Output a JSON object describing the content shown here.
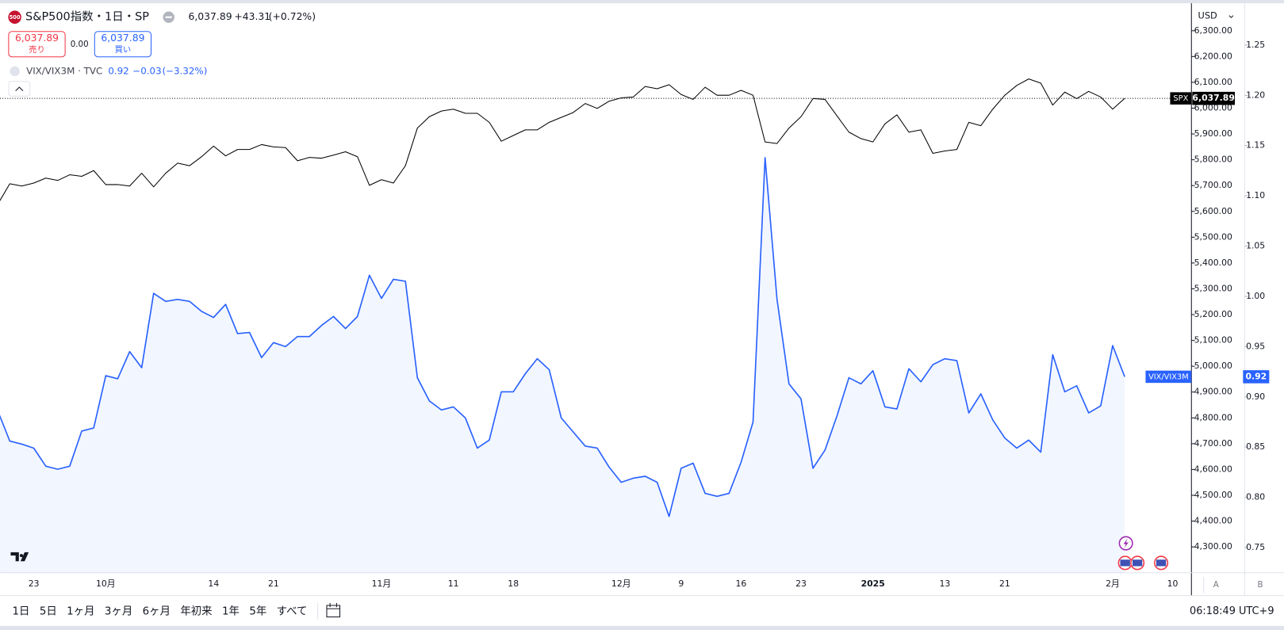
{
  "header": {
    "icon": "500",
    "symbol": "S&P500指数・1日・SP",
    "price": "6,037.89",
    "change": "+43.31",
    "change_pct": "(+0.72%)",
    "sell_price": "6,037.89",
    "sell": "売り",
    "spread": "0.00",
    "buy_price": "6,037.89",
    "buy": "買い"
  },
  "legend_row": {
    "label": "VIX/VIX3M · TVC",
    "value": "0.92",
    "change": "−0.03",
    "change_pct": "(−3.32%)"
  },
  "toolbar": {
    "ranges": [
      "1日",
      "5日",
      "1ヶ月",
      "3ヶ月",
      "6ヶ月",
      "年初来",
      "1年",
      "5年",
      "すべて"
    ],
    "time": "06:18:49 UTC+9",
    "currency": "USD",
    "scale_buttons": [
      "A",
      "B"
    ]
  },
  "chart_data": {
    "type": "line",
    "grid": false,
    "categories": [
      null,
      null,
      null,
      "23",
      null,
      null,
      null,
      null,
      null,
      "10月",
      null,
      null,
      null,
      null,
      null,
      null,
      null,
      null,
      "14",
      null,
      null,
      null,
      null,
      "21",
      null,
      null,
      null,
      null,
      null,
      null,
      null,
      null,
      "11月",
      null,
      null,
      null,
      null,
      null,
      "11",
      null,
      null,
      null,
      null,
      "18",
      null,
      null,
      null,
      null,
      null,
      null,
      null,
      null,
      "12月",
      null,
      null,
      null,
      null,
      "9",
      null,
      null,
      null,
      null,
      "16",
      null,
      null,
      null,
      null,
      "23",
      null,
      null,
      null,
      null,
      null,
      "2025",
      null,
      null,
      null,
      null,
      null,
      "13",
      null,
      null,
      null,
      null,
      "21",
      null,
      null,
      null,
      null,
      null,
      null,
      null,
      null,
      "2月",
      null,
      null,
      null,
      null,
      "10"
    ],
    "ylim": [
      4200,
      6400
    ],
    "yticks": [
      {
        "value": 4300,
        "label": "4,300.00"
      },
      {
        "value": 4400,
        "label": "4,400.00"
      },
      {
        "value": 4500,
        "label": "4,500.00"
      },
      {
        "value": 4600,
        "label": "4,600.00"
      },
      {
        "value": 4700,
        "label": "4,700.00"
      },
      {
        "value": 4800,
        "label": "4,800.00"
      },
      {
        "value": 4900,
        "label": "4,900.00"
      },
      {
        "value": 5000,
        "label": "5,000.00"
      },
      {
        "value": 5100,
        "label": "5,100.00"
      },
      {
        "value": 5200,
        "label": "5,200.00"
      },
      {
        "value": 5300,
        "label": "5,300.00"
      },
      {
        "value": 5400,
        "label": "5,400.00"
      },
      {
        "value": 5500,
        "label": "5,500.00"
      },
      {
        "value": 5600,
        "label": "5,600.00"
      },
      {
        "value": 5700,
        "label": "5,700.00"
      },
      {
        "value": 5800,
        "label": "5,800.00"
      },
      {
        "value": 5900,
        "label": "5,900.00"
      },
      {
        "value": 6000,
        "label": "6,000.00"
      },
      {
        "value": 6100,
        "label": "6,100.00"
      },
      {
        "value": 6200,
        "label": "6,200.00"
      },
      {
        "value": 6300,
        "label": "6,300.00"
      }
    ],
    "y2lim": [
      0.725,
      1.29
    ],
    "y2ticks": [
      0.75,
      {
        "value": 0.8,
        "label": "0.80"
      },
      0.85,
      {
        "value": 0.9,
        "label": "0.90"
      },
      0.95,
      {
        "value": 1.0,
        "label": "1.00"
      },
      1.05,
      {
        "value": 1.1,
        "label": "1.10"
      },
      1.15,
      {
        "value": 1.2,
        "label": "1.20"
      },
      1.25
    ],
    "series": [
      {
        "name": "SPX",
        "color": "#000000",
        "values": [
          5628,
          5707,
          5698,
          5710,
          5729,
          5720,
          5742,
          5736,
          5758,
          5704,
          5704,
          5698,
          5748,
          5695,
          5748,
          5787,
          5777,
          5812,
          5853,
          5815,
          5840,
          5840,
          5859,
          5850,
          5847,
          5796,
          5809,
          5806,
          5818,
          5831,
          5812,
          5701,
          5723,
          5710,
          5777,
          5923,
          5967,
          5989,
          5996,
          5980,
          5980,
          5945,
          5872,
          5894,
          5916,
          5916,
          5945,
          5964,
          5983,
          6018,
          5999,
          6027,
          6040,
          6043,
          6084,
          6075,
          6091,
          6053,
          6034,
          6081,
          6050,
          6050,
          6069,
          6050,
          5869,
          5863,
          5923,
          5967,
          6037,
          6034,
          5970,
          5907,
          5882,
          5869,
          5939,
          5974,
          5907,
          5916,
          5825,
          5834,
          5840,
          5945,
          5932,
          5996,
          6050,
          6088,
          6113,
          6097,
          6012,
          6062,
          6037,
          6065,
          6043,
          5996,
          6037.89,
          null,
          null,
          null,
          null
        ],
        "value_labels": [
          null,
          null,
          null,
          null,
          null,
          null,
          null,
          null,
          null,
          null,
          null,
          null,
          null,
          null,
          null,
          null,
          null,
          null,
          null,
          null,
          null,
          null,
          null,
          null,
          null,
          null,
          null,
          null,
          null,
          null,
          null,
          null,
          null,
          null,
          null,
          null,
          null,
          null,
          null,
          null,
          null,
          null,
          null,
          null,
          null,
          null,
          null,
          null,
          null,
          null,
          null,
          null,
          null,
          null,
          null,
          null,
          null,
          null,
          null,
          null,
          null,
          null,
          null,
          null,
          null,
          null,
          null,
          null,
          null,
          null,
          null,
          null,
          null,
          null,
          null,
          null,
          null,
          null,
          null,
          null,
          null,
          null,
          null,
          null,
          null,
          null,
          null,
          null,
          null,
          null,
          null,
          null,
          null,
          null,
          "6,037.89",
          null,
          null,
          null,
          null
        ]
      },
      {
        "name": "VIX/VIX3M",
        "color": "#2962ff",
        "axis": "y2",
        "area": true,
        "values": [
          0.886,
          0.856,
          0.853,
          0.849,
          0.831,
          0.828,
          0.831,
          0.866,
          0.869,
          0.921,
          0.918,
          0.945,
          0.929,
          1.003,
          0.995,
          0.997,
          0.995,
          0.985,
          0.979,
          0.992,
          0.963,
          0.964,
          0.939,
          0.954,
          0.95,
          0.96,
          0.96,
          0.971,
          0.98,
          0.968,
          0.98,
          1.021,
          0.998,
          1.017,
          1.015,
          0.919,
          0.896,
          0.887,
          0.89,
          0.879,
          0.849,
          0.857,
          0.905,
          0.905,
          0.923,
          0.938,
          0.927,
          0.879,
          0.865,
          0.851,
          0.849,
          0.83,
          0.815,
          0.819,
          0.821,
          0.815,
          0.781,
          0.829,
          0.834,
          0.804,
          0.801,
          0.804,
          0.835,
          0.875,
          1.138,
          0.997,
          0.913,
          0.898,
          0.829,
          0.847,
          0.881,
          0.919,
          0.913,
          0.926,
          0.89,
          0.888,
          0.928,
          0.915,
          0.932,
          0.938,
          0.936,
          0.884,
          0.903,
          0.877,
          0.859,
          0.849,
          0.857,
          0.845,
          0.942,
          0.905,
          0.911,
          0.884,
          0.891,
          0.951,
          0.92,
          null,
          null,
          null,
          null
        ]
      }
    ]
  }
}
